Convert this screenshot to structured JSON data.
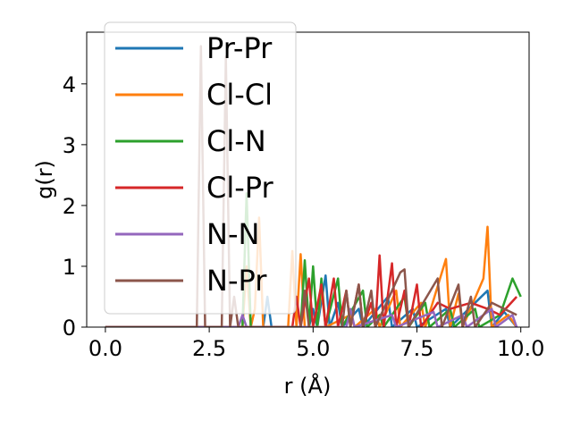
{
  "chart_data": {
    "type": "line",
    "title": "",
    "xlabel": "r (Å)",
    "ylabel": "g(r)",
    "xlim": [
      -0.45,
      10.2
    ],
    "ylim": [
      0,
      4.85
    ],
    "xticks": [
      0.0,
      2.5,
      5.0,
      7.5,
      10.0
    ],
    "xtick_labels": [
      "0.0",
      "2.5",
      "5.0",
      "7.5",
      "10.0"
    ],
    "yticks": [
      0,
      1,
      2,
      3,
      4
    ],
    "ytick_labels": [
      "0",
      "1",
      "2",
      "3",
      "4"
    ],
    "grid": false,
    "legend_position": "top-left",
    "series": [
      {
        "name": "Pr-Pr",
        "color": "#1f77b4",
        "points": [
          [
            0,
            0
          ],
          [
            3.8,
            0
          ],
          [
            3.9,
            0.5
          ],
          [
            4.0,
            0
          ],
          [
            4.9,
            0
          ],
          [
            5.0,
            0.3
          ],
          [
            5.1,
            0
          ],
          [
            5.3,
            0.85
          ],
          [
            5.4,
            0
          ],
          [
            5.6,
            0.4
          ],
          [
            5.7,
            0
          ],
          [
            6.1,
            0.3
          ],
          [
            6.2,
            0
          ],
          [
            6.8,
            0.5
          ],
          [
            6.9,
            0
          ],
          [
            7.4,
            0.3
          ],
          [
            7.5,
            0
          ],
          [
            8.2,
            0.3
          ],
          [
            8.3,
            0
          ],
          [
            9.2,
            0.6
          ],
          [
            9.3,
            0
          ],
          [
            9.6,
            0.25
          ],
          [
            9.9,
            0
          ]
        ]
      },
      {
        "name": "Cl-Cl",
        "color": "#ff7f0e",
        "points": [
          [
            0,
            0
          ],
          [
            3.3,
            0
          ],
          [
            3.4,
            1.0
          ],
          [
            3.5,
            0
          ],
          [
            3.6,
            0.3
          ],
          [
            3.7,
            1.8
          ],
          [
            3.8,
            0
          ],
          [
            4.4,
            0
          ],
          [
            4.5,
            1.25
          ],
          [
            4.6,
            0
          ],
          [
            4.7,
            1.2
          ],
          [
            4.8,
            0
          ],
          [
            5.1,
            0
          ],
          [
            5.2,
            0.65
          ],
          [
            5.3,
            0
          ],
          [
            5.9,
            0.2
          ],
          [
            6.0,
            0
          ],
          [
            6.5,
            0.3
          ],
          [
            6.6,
            0
          ],
          [
            7.0,
            0.6
          ],
          [
            7.1,
            0
          ],
          [
            7.6,
            0.4
          ],
          [
            7.7,
            0
          ],
          [
            8.2,
            1.12
          ],
          [
            8.3,
            0
          ],
          [
            8.5,
            0.55
          ],
          [
            8.6,
            0
          ],
          [
            9.1,
            0.8
          ],
          [
            9.2,
            1.65
          ],
          [
            9.3,
            0
          ],
          [
            9.7,
            0.2
          ],
          [
            9.9,
            0
          ]
        ]
      },
      {
        "name": "Cl-N",
        "color": "#2ca02c",
        "points": [
          [
            0,
            0
          ],
          [
            3.3,
            0
          ],
          [
            3.4,
            2.2
          ],
          [
            3.5,
            0
          ],
          [
            4.7,
            0
          ],
          [
            4.8,
            1.1
          ],
          [
            4.9,
            0
          ],
          [
            5.0,
            1.0
          ],
          [
            5.1,
            0
          ],
          [
            5.2,
            0.8
          ],
          [
            5.3,
            0
          ],
          [
            5.6,
            0.8
          ],
          [
            5.7,
            0
          ],
          [
            6.2,
            0.6
          ],
          [
            6.3,
            0
          ],
          [
            6.6,
            0.2
          ],
          [
            6.7,
            0
          ],
          [
            7.2,
            0.5
          ],
          [
            7.3,
            0
          ],
          [
            7.7,
            0.4
          ],
          [
            7.8,
            0
          ],
          [
            8.3,
            0.3
          ],
          [
            8.4,
            0
          ],
          [
            8.9,
            0.3
          ],
          [
            9.0,
            0
          ],
          [
            9.5,
            0.2
          ],
          [
            9.8,
            0.8
          ],
          [
            10.0,
            0.5
          ]
        ]
      },
      {
        "name": "Cl-Pr",
        "color": "#d62728",
        "points": [
          [
            0,
            0
          ],
          [
            4.5,
            0
          ],
          [
            4.6,
            0.5
          ],
          [
            4.7,
            0
          ],
          [
            4.9,
            0.8
          ],
          [
            5.0,
            0
          ],
          [
            5.2,
            0.7
          ],
          [
            5.3,
            0
          ],
          [
            5.5,
            0.8
          ],
          [
            5.6,
            0
          ],
          [
            5.8,
            0.6
          ],
          [
            5.9,
            0
          ],
          [
            6.1,
            0.7
          ],
          [
            6.2,
            0
          ],
          [
            6.4,
            0.4
          ],
          [
            6.5,
            0
          ],
          [
            6.6,
            1.18
          ],
          [
            6.7,
            0
          ],
          [
            6.9,
            1.05
          ],
          [
            7.0,
            0
          ],
          [
            7.2,
            0.6
          ],
          [
            7.3,
            0
          ],
          [
            7.5,
            0.7
          ],
          [
            7.6,
            0
          ],
          [
            8.0,
            0.4
          ],
          [
            8.3,
            0.3
          ],
          [
            8.8,
            0.4
          ],
          [
            9.2,
            0.3
          ],
          [
            9.5,
            0.2
          ],
          [
            9.9,
            0.5
          ]
        ]
      },
      {
        "name": "N-N",
        "color": "#9467bd",
        "points": [
          [
            0,
            0
          ],
          [
            3.2,
            0
          ],
          [
            3.3,
            0.2
          ],
          [
            3.4,
            0
          ],
          [
            5.8,
            0
          ],
          [
            5.9,
            0.3
          ],
          [
            6.0,
            0
          ],
          [
            6.9,
            0.2
          ],
          [
            7.0,
            0
          ],
          [
            7.9,
            0.25
          ],
          [
            8.0,
            0
          ],
          [
            8.6,
            0.2
          ],
          [
            8.7,
            0
          ],
          [
            9.3,
            0.3
          ],
          [
            9.4,
            0
          ],
          [
            9.8,
            0.2
          ],
          [
            9.9,
            0
          ]
        ]
      },
      {
        "name": "N-Pr",
        "color": "#8c564b",
        "points": [
          [
            0,
            0
          ],
          [
            2.2,
            0
          ],
          [
            2.3,
            4.62
          ],
          [
            2.4,
            0
          ],
          [
            2.8,
            0
          ],
          [
            2.9,
            4.45
          ],
          [
            3.0,
            0
          ],
          [
            3.1,
            0.5
          ],
          [
            3.2,
            0
          ],
          [
            4.7,
            0
          ],
          [
            4.8,
            0.6
          ],
          [
            4.9,
            0
          ],
          [
            5.7,
            0
          ],
          [
            5.8,
            0.6
          ],
          [
            5.9,
            0
          ],
          [
            6.1,
            0.7
          ],
          [
            6.2,
            0
          ],
          [
            6.4,
            0.6
          ],
          [
            6.5,
            0
          ],
          [
            7.1,
            0.9
          ],
          [
            7.2,
            0.95
          ],
          [
            7.3,
            0
          ],
          [
            8.0,
            0.8
          ],
          [
            8.1,
            0
          ],
          [
            8.5,
            0.7
          ],
          [
            8.6,
            0
          ],
          [
            8.8,
            0.5
          ],
          [
            8.9,
            0
          ],
          [
            9.3,
            0.4
          ],
          [
            9.9,
            0.2
          ]
        ]
      }
    ]
  }
}
